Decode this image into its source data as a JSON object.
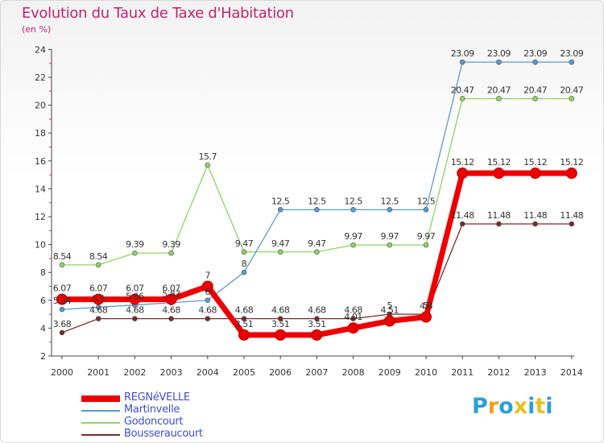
{
  "header": {
    "title": "Evolution du Taux de Taxe d'Habitation",
    "subtitle": "(en %)"
  },
  "logo": {
    "letters": [
      "P",
      "r",
      "o",
      "x",
      "i",
      "t",
      "i"
    ],
    "colors": [
      "#2aa0d8",
      "#f0a020",
      "#2aa0d8",
      "#e8c020",
      "#2aa0d8",
      "#e8c020",
      "#2aa0d8"
    ]
  },
  "chart_data": {
    "type": "line",
    "title": "Evolution du Taux de Taxe d'Habitation",
    "ylabel": "(en %)",
    "xlabel": "",
    "x": [
      "2000",
      "2001",
      "2002",
      "2003",
      "2004",
      "2005",
      "2006",
      "2007",
      "2008",
      "2009",
      "2010",
      "2011",
      "2012",
      "2013",
      "2014"
    ],
    "ylim": [
      2,
      24
    ],
    "yticks": [
      "2",
      "4",
      "6",
      "8",
      "10",
      "12",
      "14",
      "16",
      "18",
      "20",
      "22",
      "24"
    ],
    "grid": false,
    "legend_position": "bottom-left",
    "series": [
      {
        "name": "Bousseraucourt",
        "color": "#7a2a2a",
        "values": [
          3.68,
          4.68,
          4.68,
          4.68,
          4.68,
          4.68,
          4.68,
          4.68,
          4.68,
          5,
          5,
          11.48,
          11.48,
          11.48,
          11.48
        ],
        "labels": [
          "3.68",
          "4.68",
          "4.68",
          "4.68",
          "4.68",
          "4.68",
          "4.68",
          "4.68",
          "4.68",
          "5",
          "5",
          "11.48",
          "11.48",
          "11.48",
          "11.48"
        ]
      },
      {
        "name": "Godoncourt",
        "color": "#8ed462",
        "values": [
          8.54,
          8.54,
          9.39,
          9.39,
          15.7,
          9.47,
          9.47,
          9.47,
          9.97,
          9.97,
          9.97,
          20.47,
          20.47,
          20.47,
          20.47
        ],
        "labels": [
          "8.54",
          "8.54",
          "9.39",
          "9.39",
          "15.7",
          "9.47",
          "9.47",
          "9.47",
          "9.97",
          "9.97",
          "9.97",
          "20.47",
          "20.47",
          "20.47",
          "20.47"
        ]
      },
      {
        "name": "Martinvelle",
        "color": "#5a9ad2",
        "values": [
          5.34,
          5.5,
          5.66,
          5.83,
          6,
          8,
          12.5,
          12.5,
          12.5,
          12.5,
          12.5,
          23.09,
          23.09,
          23.09,
          23.09
        ],
        "labels": [
          "5.34",
          "5.5",
          "5.66",
          "5.83",
          "6",
          "8",
          "12.5",
          "12.5",
          "12.5",
          "12.5",
          "12.5",
          "23.09",
          "23.09",
          "23.09",
          "23.09"
        ]
      },
      {
        "name": "REGNéVELLE",
        "color": "#ee0000",
        "emphasis": true,
        "values": [
          6.07,
          6.07,
          6.07,
          6.07,
          7,
          3.51,
          3.51,
          3.51,
          4.01,
          4.51,
          4.8,
          15.12,
          15.12,
          15.12,
          15.12
        ],
        "labels": [
          "6.07",
          "6.07",
          "6.07",
          "6.07",
          "7",
          "3.51",
          "3.51",
          "3.51",
          "4.01",
          "4.51",
          "4.8",
          "15.12",
          "15.12",
          "15.12",
          "15.12"
        ]
      }
    ],
    "legend_order": [
      "REGNéVELLE",
      "Martinvelle",
      "Godoncourt",
      "Bousseraucourt"
    ]
  }
}
